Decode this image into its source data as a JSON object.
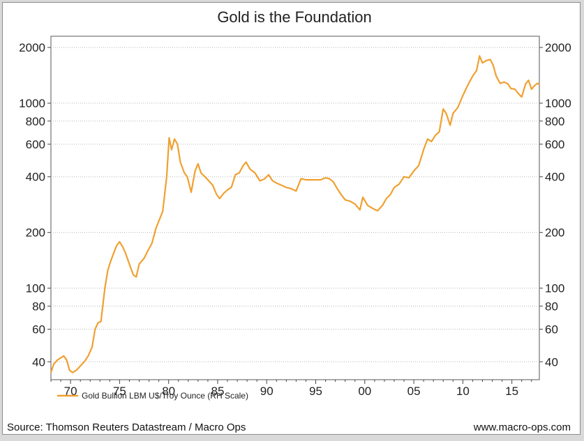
{
  "chart_data": {
    "type": "line",
    "title": "Gold is the Foundation",
    "y_scale": "log",
    "ylim": [
      32,
      2300
    ],
    "xlim": [
      1968.0,
      2017.8
    ],
    "y_ticks": [
      40,
      60,
      80,
      100,
      200,
      400,
      600,
      800,
      1000,
      2000
    ],
    "x_ticks": [
      {
        "year": 1970,
        "label": "70"
      },
      {
        "year": 1975,
        "label": "75"
      },
      {
        "year": 1980,
        "label": "80"
      },
      {
        "year": 1985,
        "label": "85"
      },
      {
        "year": 1990,
        "label": "90"
      },
      {
        "year": 1995,
        "label": "95"
      },
      {
        "year": 2000,
        "label": "00"
      },
      {
        "year": 2005,
        "label": "05"
      },
      {
        "year": 2010,
        "label": "10"
      },
      {
        "year": 2015,
        "label": "15"
      }
    ],
    "grid": true,
    "axes": "left and right y-axes mirrored",
    "series": [
      {
        "name": "Gold Bullion LBM U$/Troy Ounce (RH Scale)",
        "color": "#F0A030",
        "points": [
          [
            1968.0,
            35
          ],
          [
            1968.3,
            39
          ],
          [
            1968.7,
            41
          ],
          [
            1969.0,
            42
          ],
          [
            1969.3,
            43
          ],
          [
            1969.6,
            41
          ],
          [
            1969.9,
            36
          ],
          [
            1970.2,
            35
          ],
          [
            1970.6,
            36
          ],
          [
            1971.0,
            38
          ],
          [
            1971.4,
            40
          ],
          [
            1971.8,
            43
          ],
          [
            1972.2,
            48
          ],
          [
            1972.5,
            60
          ],
          [
            1972.8,
            65
          ],
          [
            1973.1,
            66
          ],
          [
            1973.5,
            100
          ],
          [
            1973.8,
            125
          ],
          [
            1974.1,
            140
          ],
          [
            1974.4,
            155
          ],
          [
            1974.7,
            170
          ],
          [
            1975.0,
            178
          ],
          [
            1975.3,
            168
          ],
          [
            1975.6,
            155
          ],
          [
            1976.0,
            135
          ],
          [
            1976.4,
            118
          ],
          [
            1976.7,
            115
          ],
          [
            1977.0,
            135
          ],
          [
            1977.5,
            145
          ],
          [
            1977.9,
            160
          ],
          [
            1978.3,
            175
          ],
          [
            1978.7,
            210
          ],
          [
            1979.0,
            230
          ],
          [
            1979.4,
            260
          ],
          [
            1979.8,
            400
          ],
          [
            1980.05,
            650
          ],
          [
            1980.3,
            560
          ],
          [
            1980.6,
            640
          ],
          [
            1980.9,
            600
          ],
          [
            1981.2,
            480
          ],
          [
            1981.6,
            420
          ],
          [
            1981.9,
            400
          ],
          [
            1982.3,
            330
          ],
          [
            1982.7,
            430
          ],
          [
            1983.0,
            470
          ],
          [
            1983.3,
            420
          ],
          [
            1983.7,
            400
          ],
          [
            1984.1,
            380
          ],
          [
            1984.5,
            360
          ],
          [
            1984.9,
            320
          ],
          [
            1985.2,
            305
          ],
          [
            1985.6,
            325
          ],
          [
            1986.0,
            340
          ],
          [
            1986.4,
            350
          ],
          [
            1986.8,
            410
          ],
          [
            1987.2,
            420
          ],
          [
            1987.6,
            460
          ],
          [
            1987.9,
            480
          ],
          [
            1988.3,
            440
          ],
          [
            1988.8,
            420
          ],
          [
            1989.3,
            380
          ],
          [
            1989.8,
            390
          ],
          [
            1990.2,
            410
          ],
          [
            1990.6,
            380
          ],
          [
            1991.0,
            370
          ],
          [
            1991.5,
            360
          ],
          [
            1992.0,
            350
          ],
          [
            1992.5,
            345
          ],
          [
            1993.0,
            335
          ],
          [
            1993.5,
            390
          ],
          [
            1994.0,
            385
          ],
          [
            1994.5,
            385
          ],
          [
            1995.0,
            385
          ],
          [
            1995.5,
            385
          ],
          [
            1996.0,
            395
          ],
          [
            1996.4,
            390
          ],
          [
            1996.8,
            375
          ],
          [
            1997.2,
            345
          ],
          [
            1997.6,
            320
          ],
          [
            1998.0,
            300
          ],
          [
            1998.5,
            295
          ],
          [
            1999.0,
            285
          ],
          [
            1999.5,
            265
          ],
          [
            1999.8,
            310
          ],
          [
            2000.3,
            280
          ],
          [
            2000.8,
            270
          ],
          [
            2001.3,
            262
          ],
          [
            2001.8,
            280
          ],
          [
            2002.2,
            305
          ],
          [
            2002.6,
            320
          ],
          [
            2003.0,
            350
          ],
          [
            2003.5,
            365
          ],
          [
            2004.0,
            400
          ],
          [
            2004.5,
            395
          ],
          [
            2005.0,
            430
          ],
          [
            2005.5,
            460
          ],
          [
            2006.0,
            560
          ],
          [
            2006.4,
            640
          ],
          [
            2006.8,
            620
          ],
          [
            2007.2,
            670
          ],
          [
            2007.6,
            700
          ],
          [
            2008.0,
            930
          ],
          [
            2008.3,
            880
          ],
          [
            2008.7,
            760
          ],
          [
            2009.0,
            880
          ],
          [
            2009.5,
            950
          ],
          [
            2010.0,
            1100
          ],
          [
            2010.5,
            1250
          ],
          [
            2011.0,
            1400
          ],
          [
            2011.4,
            1500
          ],
          [
            2011.7,
            1800
          ],
          [
            2012.0,
            1650
          ],
          [
            2012.4,
            1700
          ],
          [
            2012.8,
            1720
          ],
          [
            2013.1,
            1600
          ],
          [
            2013.4,
            1400
          ],
          [
            2013.8,
            1280
          ],
          [
            2014.2,
            1300
          ],
          [
            2014.6,
            1270
          ],
          [
            2014.9,
            1200
          ],
          [
            2015.3,
            1190
          ],
          [
            2015.7,
            1120
          ],
          [
            2016.0,
            1080
          ],
          [
            2016.4,
            1270
          ],
          [
            2016.7,
            1330
          ],
          [
            2017.0,
            1190
          ],
          [
            2017.3,
            1240
          ],
          [
            2017.6,
            1280
          ],
          [
            2017.8,
            1260
          ]
        ]
      }
    ]
  },
  "footer": {
    "source": "Source: Thomson Reuters Datastream / Macro Ops",
    "website": "www.macro-ops.com"
  }
}
